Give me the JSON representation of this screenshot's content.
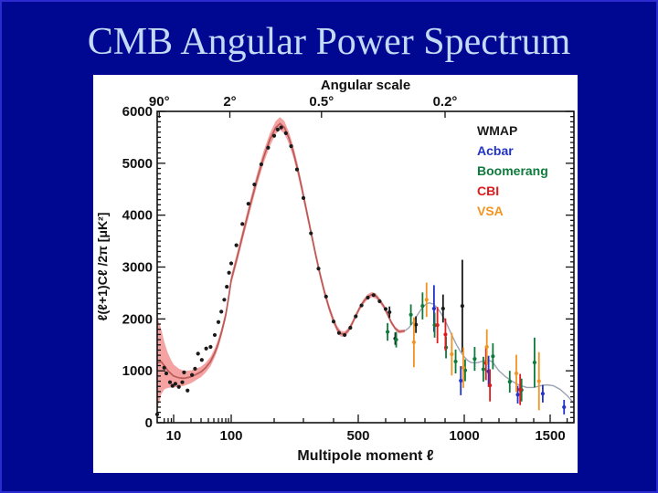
{
  "slide": {
    "title": "CMB Angular Power Spectrum",
    "background_color": "#000892",
    "title_color": "#c3d9f5",
    "panel_color": "#ffffff"
  },
  "chart_data": {
    "type": "line",
    "top_axis_label": "Angular scale",
    "xlabel": "Multipole moment ℓ",
    "ylabel": "ℓ(ℓ+1)Cℓ /2π  [μK²]",
    "xscale": "log for ℓ<100, compressed quasi-linear for ℓ>100",
    "xlim": [
      2,
      1640
    ],
    "ylim": [
      0,
      6000
    ],
    "grid": false,
    "legend_position": "top-right",
    "yticks": [
      0,
      1000,
      2000,
      3000,
      4000,
      5000,
      6000
    ],
    "ytick_minor_step": 100,
    "xticks_bottom": [
      {
        "l": 10,
        "label": "10"
      },
      {
        "l": 100,
        "label": "100"
      },
      {
        "l": 500,
        "label": "500"
      },
      {
        "l": 1000,
        "label": "1000"
      },
      {
        "l": 1500,
        "label": "1500"
      }
    ],
    "xticks_bottom_minor": [
      4,
      6,
      8,
      20,
      30,
      40,
      50,
      60,
      70,
      80,
      90,
      200,
      300,
      400,
      600,
      700,
      800,
      900,
      1100,
      1200,
      1300,
      1400,
      1600
    ],
    "xticks_top": [
      {
        "l": 2.5,
        "label": "90°"
      },
      {
        "l": 95,
        "label": "2°"
      },
      {
        "l": 360,
        "label": "0.5°"
      },
      {
        "l": 900,
        "label": "0.2°"
      }
    ],
    "model_curve": {
      "band_color": "#f4a2a2",
      "red_color": "#bb5b58",
      "gray_color": "#9aa4b4",
      "band_knots": [
        [
          2,
          250,
          2050
        ],
        [
          3,
          550,
          1800
        ],
        [
          4,
          640,
          1560
        ],
        [
          5,
          660,
          1430
        ],
        [
          6,
          670,
          1330
        ],
        [
          8,
          680,
          1200
        ],
        [
          10,
          680,
          1120
        ],
        [
          13,
          690,
          1040
        ],
        [
          16,
          710,
          1000
        ],
        [
          20,
          760,
          1010
        ],
        [
          25,
          820,
          1040
        ],
        [
          30,
          880,
          1080
        ],
        [
          36,
          960,
          1150
        ],
        [
          44,
          1090,
          1270
        ],
        [
          52,
          1260,
          1430
        ],
        [
          60,
          1450,
          1620
        ],
        [
          70,
          1700,
          1870
        ],
        [
          80,
          1990,
          2160
        ],
        [
          90,
          2310,
          2480
        ],
        [
          100,
          2660,
          2840
        ],
        [
          115,
          3130,
          3330
        ],
        [
          130,
          3620,
          3830
        ],
        [
          145,
          4110,
          4330
        ],
        [
          160,
          4570,
          4800
        ],
        [
          175,
          4990,
          5230
        ],
        [
          190,
          5330,
          5580
        ],
        [
          205,
          5560,
          5810
        ],
        [
          220,
          5640,
          5890
        ],
        [
          235,
          5570,
          5810
        ],
        [
          250,
          5380,
          5610
        ],
        [
          265,
          5120,
          5340
        ],
        [
          280,
          4790,
          5000
        ],
        [
          295,
          4410,
          4610
        ],
        [
          310,
          4000,
          4190
        ],
        [
          325,
          3580,
          3760
        ],
        [
          340,
          3170,
          3340
        ],
        [
          355,
          2780,
          2940
        ],
        [
          370,
          2440,
          2590
        ],
        [
          385,
          2140,
          2280
        ],
        [
          400,
          1900,
          2030
        ],
        [
          415,
          1740,
          1860
        ],
        [
          430,
          1660,
          1770
        ],
        [
          445,
          1660,
          1760
        ],
        [
          460,
          1730,
          1830
        ],
        [
          475,
          1860,
          1960
        ],
        [
          490,
          2010,
          2110
        ],
        [
          505,
          2160,
          2260
        ],
        [
          520,
          2290,
          2390
        ],
        [
          535,
          2380,
          2480
        ],
        [
          550,
          2420,
          2520
        ],
        [
          565,
          2390,
          2490
        ],
        [
          580,
          2300,
          2390
        ],
        [
          595,
          2180,
          2270
        ],
        [
          610,
          2040,
          2130
        ],
        [
          630,
          1890,
          1970
        ],
        [
          650,
          1780,
          1850
        ],
        [
          670,
          1720,
          1790
        ],
        [
          700,
          1740,
          1800
        ]
      ],
      "gray_knots": [
        [
          700,
          1770
        ],
        [
          720,
          1830
        ],
        [
          740,
          1930
        ],
        [
          760,
          2060
        ],
        [
          780,
          2180
        ],
        [
          800,
          2270
        ],
        [
          820,
          2310
        ],
        [
          840,
          2290
        ],
        [
          860,
          2220
        ],
        [
          880,
          2110
        ],
        [
          900,
          1970
        ],
        [
          920,
          1810
        ],
        [
          940,
          1650
        ],
        [
          960,
          1500
        ],
        [
          980,
          1370
        ],
        [
          1000,
          1270
        ],
        [
          1020,
          1200
        ],
        [
          1040,
          1160
        ],
        [
          1060,
          1150
        ],
        [
          1080,
          1160
        ],
        [
          1100,
          1180
        ],
        [
          1120,
          1200
        ],
        [
          1140,
          1200
        ],
        [
          1160,
          1180
        ],
        [
          1200,
          1000
        ],
        [
          1240,
          880
        ],
        [
          1280,
          790
        ],
        [
          1320,
          720
        ],
        [
          1360,
          680
        ],
        [
          1400,
          680
        ],
        [
          1440,
          710
        ],
        [
          1480,
          730
        ],
        [
          1520,
          710
        ],
        [
          1560,
          640
        ],
        [
          1600,
          520
        ],
        [
          1640,
          380
        ]
      ]
    },
    "series": [
      {
        "name": "WMAP",
        "color": "#1a1a1a",
        "points": [
          [
            2,
            160,
            0
          ],
          [
            4,
            1060,
            0
          ],
          [
            5,
            950,
            0
          ],
          [
            7,
            780,
            0
          ],
          [
            9,
            710,
            0
          ],
          [
            11,
            750,
            0
          ],
          [
            13,
            690,
            0
          ],
          [
            15,
            780,
            0
          ],
          [
            16,
            970,
            0
          ],
          [
            18,
            620,
            0
          ],
          [
            21,
            920,
            0
          ],
          [
            24,
            1040,
            0
          ],
          [
            27,
            1330,
            0
          ],
          [
            31,
            1210,
            0
          ],
          [
            37,
            1430,
            0
          ],
          [
            44,
            1460,
            0
          ],
          [
            52,
            1690,
            0
          ],
          [
            60,
            1940,
            0
          ],
          [
            68,
            2140,
            0
          ],
          [
            76,
            2370,
            0
          ],
          [
            84,
            2620,
            0
          ],
          [
            92,
            2890,
            0
          ],
          [
            100,
            3070,
            0
          ],
          [
            112,
            3420,
            0
          ],
          [
            126,
            3830,
            0
          ],
          [
            140,
            4220,
            0
          ],
          [
            154,
            4590,
            0
          ],
          [
            170,
            4980,
            0
          ],
          [
            186,
            5300,
            0
          ],
          [
            200,
            5530,
            0
          ],
          [
            212,
            5650,
            0
          ],
          [
            224,
            5690,
            0
          ],
          [
            240,
            5580,
            0
          ],
          [
            258,
            5330,
            0
          ],
          [
            278,
            4880,
            0
          ],
          [
            300,
            4330,
            0
          ],
          [
            325,
            3650,
            0
          ],
          [
            350,
            2970,
            0
          ],
          [
            375,
            2430,
            0
          ],
          [
            400,
            1950,
            0
          ],
          [
            422,
            1730,
            0
          ],
          [
            445,
            1690,
            0
          ],
          [
            468,
            1830,
            0
          ],
          [
            490,
            2050,
            0
          ],
          [
            512,
            2260,
            0
          ],
          [
            535,
            2410,
            0
          ],
          [
            556,
            2460,
            0
          ],
          [
            578,
            2340,
            0
          ],
          [
            600,
            2190,
            0
          ],
          [
            620,
            2130,
            110
          ],
          [
            650,
            1620,
            120
          ],
          [
            755,
            1890,
            160
          ],
          [
            890,
            2200,
            270
          ],
          [
            990,
            2250,
            890
          ]
        ]
      },
      {
        "name": "Acbar",
        "color": "#2233cc",
        "points": [
          [
            845,
            2200,
            450
          ],
          [
            982,
            810,
            280
          ],
          [
            1140,
            990,
            300
          ],
          [
            1308,
            540,
            170
          ],
          [
            1455,
            560,
            170
          ],
          [
            1582,
            300,
            140
          ]
        ]
      },
      {
        "name": "Boomerang",
        "color": "#0e7a3c",
        "points": [
          [
            610,
            1750,
            170
          ],
          [
            655,
            1600,
            150
          ],
          [
            730,
            2080,
            200
          ],
          [
            788,
            2250,
            260
          ],
          [
            848,
            1880,
            240
          ],
          [
            905,
            1450,
            210
          ],
          [
            955,
            1180,
            230
          ],
          [
            1005,
            1010,
            210
          ],
          [
            1060,
            1230,
            230
          ],
          [
            1110,
            1030,
            240
          ],
          [
            1165,
            1280,
            250
          ],
          [
            1262,
            790,
            210
          ],
          [
            1330,
            630,
            220
          ],
          [
            1405,
            1160,
            480
          ]
        ]
      },
      {
        "name": "CBI",
        "color": "#e01b1b",
        "points": [
          [
            862,
            1880,
            350
          ],
          [
            902,
            1700,
            310
          ],
          [
            1125,
            1150,
            330
          ],
          [
            1148,
            720,
            310
          ],
          [
            1322,
            640,
            300
          ]
        ]
      },
      {
        "name": "VSA",
        "color": "#f29422",
        "points": [
          [
            745,
            1550,
            480
          ],
          [
            808,
            2370,
            330
          ],
          [
            935,
            1320,
            410
          ],
          [
            995,
            1060,
            390
          ],
          [
            1130,
            1460,
            340
          ],
          [
            1300,
            950,
            360
          ],
          [
            1432,
            800,
            560
          ]
        ]
      }
    ]
  }
}
